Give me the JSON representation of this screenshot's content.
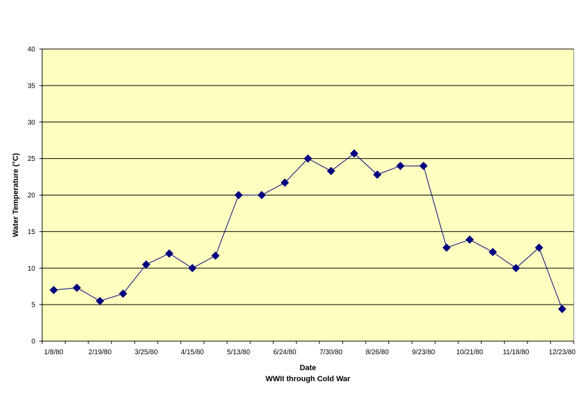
{
  "chart_data": {
    "type": "line",
    "title": "",
    "xlabel": "Date",
    "xlabel_sub": "WWII through Cold War",
    "ylabel": "Water Temperature (°C)",
    "ylim": [
      0,
      40
    ],
    "yticks": [
      0,
      5,
      10,
      15,
      20,
      25,
      30,
      35,
      40
    ],
    "xticks": [
      "1/8/80",
      "2/19/80",
      "3/25/80",
      "4/15/80",
      "5/13/80",
      "6/24/80",
      "7/30/80",
      "8/26/80",
      "9/23/80",
      "10/21/80",
      "11/18/80",
      "12/23/80"
    ],
    "grid": true,
    "legend": "none",
    "colors": {
      "plot_background": "#FFFFC0",
      "line": "#000080",
      "marker": "#000080",
      "gridline": "#000000"
    },
    "series": [
      {
        "marker": "diamond",
        "values": [
          7.0,
          7.3,
          5.5,
          6.5,
          10.5,
          12.0,
          10.0,
          11.7,
          20.0,
          20.0,
          21.7,
          25.0,
          23.3,
          25.7,
          22.8,
          24.0,
          24.0,
          12.8,
          13.9,
          12.2,
          10.0,
          12.8,
          4.4
        ]
      }
    ]
  }
}
